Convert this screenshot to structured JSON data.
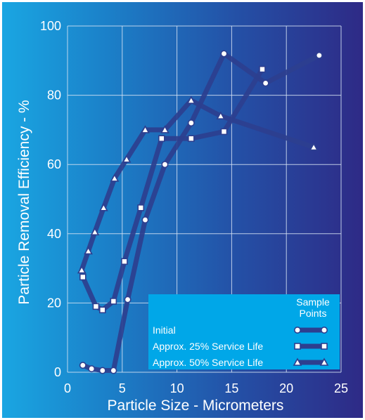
{
  "chart_data": {
    "type": "line",
    "xlabel": "Particle Size - Micrometers",
    "ylabel": "Particle Removal Efficiency - %",
    "xlim": [
      0,
      25
    ],
    "ylim": [
      0,
      100
    ],
    "xticks": [
      0,
      5,
      10,
      15,
      20,
      25
    ],
    "yticks": [
      0,
      20,
      40,
      60,
      80,
      100
    ],
    "grid": true,
    "legend": {
      "title_line1": "Sample",
      "title_line2": "Points",
      "placement": "bottom-right"
    },
    "series": [
      {
        "name": "Initial",
        "marker": "circle",
        "x": [
          1.4,
          2.2,
          3.2,
          4.2,
          5.5,
          7.1,
          8.9,
          11.3,
          14.3,
          18.1,
          23.0
        ],
        "y": [
          2,
          1,
          0.5,
          0.5,
          21,
          44,
          60,
          72,
          92,
          83.5,
          91.5
        ]
      },
      {
        "name": "Approx. 25% Service Life",
        "marker": "square",
        "x": [
          1.4,
          2.6,
          3.2,
          4.2,
          5.2,
          6.7,
          8.6,
          11.3,
          14.3,
          17.8
        ],
        "y": [
          27.5,
          19,
          18,
          20.5,
          32,
          47.5,
          67.5,
          67.5,
          69.5,
          87.5
        ]
      },
      {
        "name": "Approx. 50% Service Life",
        "marker": "triangle",
        "x": [
          1.3,
          1.9,
          2.5,
          3.3,
          4.3,
          5.4,
          7.1,
          8.9,
          11.3,
          14.0,
          22.5
        ],
        "y": [
          29.5,
          35,
          40.5,
          47.5,
          56,
          61.5,
          70,
          70,
          78.5,
          74,
          65
        ]
      }
    ]
  },
  "colors": {
    "series_line": "#2d3f8f",
    "marker_fill": "#ffffff",
    "legend_bg": "#00a7e8",
    "grid": "#d8e4f4"
  }
}
